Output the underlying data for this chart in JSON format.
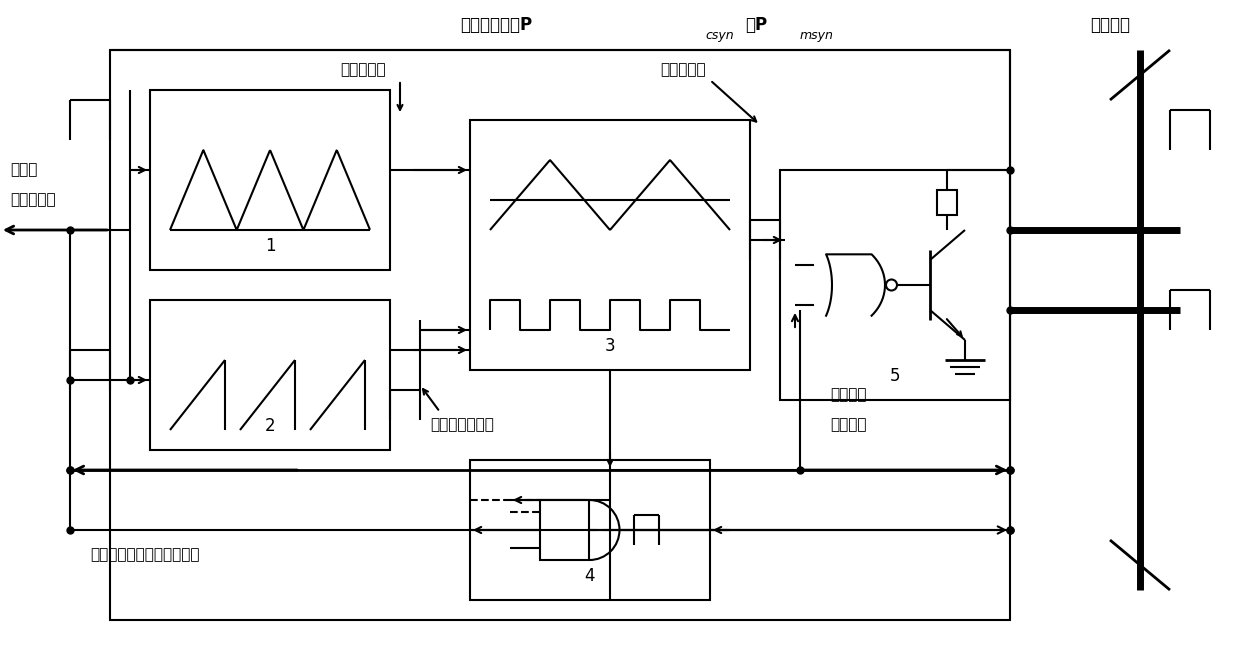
{
  "bg_color": "#ffffff",
  "line_color": "#000000",
  "lw": 1.5,
  "thick_lw": 5.0,
  "text_top1": "总线同步信号P",
  "text_top1_sub1": "csyn",
  "text_top1_mid": "和P",
  "text_top1_sub2": "msyn",
  "text_right_bus": "同步总线",
  "text_triangle": "三角波载波",
  "text_quasi": "准同步信号",
  "text_mod_reset": "调制波复位信号",
  "text_to_others_line1": "到其它",
  "text_to_others_line2": "逆变器模块",
  "text_sync_out": "逆变器输出的同步使能信号",
  "text_and_out_line1": "线与输出",
  "text_and_out_line2": "使能信号",
  "label1": "1",
  "label2": "2",
  "label3": "3",
  "label4": "4",
  "label5": "5"
}
